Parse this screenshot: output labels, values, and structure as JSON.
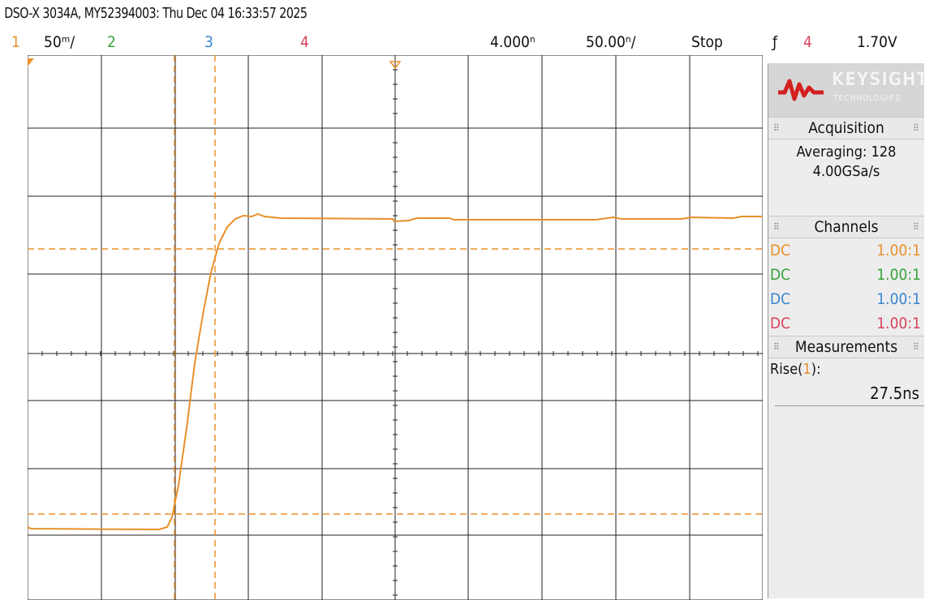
{
  "title": "DSO-X 3034A, MY52394003: Thu Dec 04 16:33:57 2025",
  "status": {
    "ch1_num": "1",
    "ch1_scale": "50ᵐ/",
    "ch2_num": "2",
    "ch3_num": "3",
    "ch4_num": "4",
    "time_offset": "4.000ⁿ",
    "timebase": "50.00ⁿ/",
    "run_state": "Stop",
    "trigger_icon": "ƒ",
    "trigger_source": "4",
    "trigger_level": "1.70V"
  },
  "brand": {
    "name": "KEYSIGHT",
    "sub": "TECHNOLOGIES",
    "logo_icon": "keysight-wave-icon"
  },
  "acquisition": {
    "header": "Acquisition",
    "mode": "Averaging: 128",
    "rate": "4.00GSa/s"
  },
  "channels": {
    "header": "Channels",
    "rows": [
      {
        "coupling": "DC",
        "ratio": "1.00:1",
        "color": "#e8902a"
      },
      {
        "coupling": "DC",
        "ratio": "1.00:1",
        "color": "#36a43a"
      },
      {
        "coupling": "DC",
        "ratio": "1.00:1",
        "color": "#3a86d0"
      },
      {
        "coupling": "DC",
        "ratio": "1.00:1",
        "color": "#d8435a"
      }
    ]
  },
  "measurements": {
    "header": "Measurements",
    "label_prefix": "Rise(",
    "label_ch": "1",
    "label_suffix": "):",
    "value": "27.5ns"
  },
  "colors": {
    "ch1": "#e8902a",
    "ch2": "#36a43a",
    "ch3": "#3a86d0",
    "ch4": "#d8435a",
    "grid": "#222222"
  }
}
